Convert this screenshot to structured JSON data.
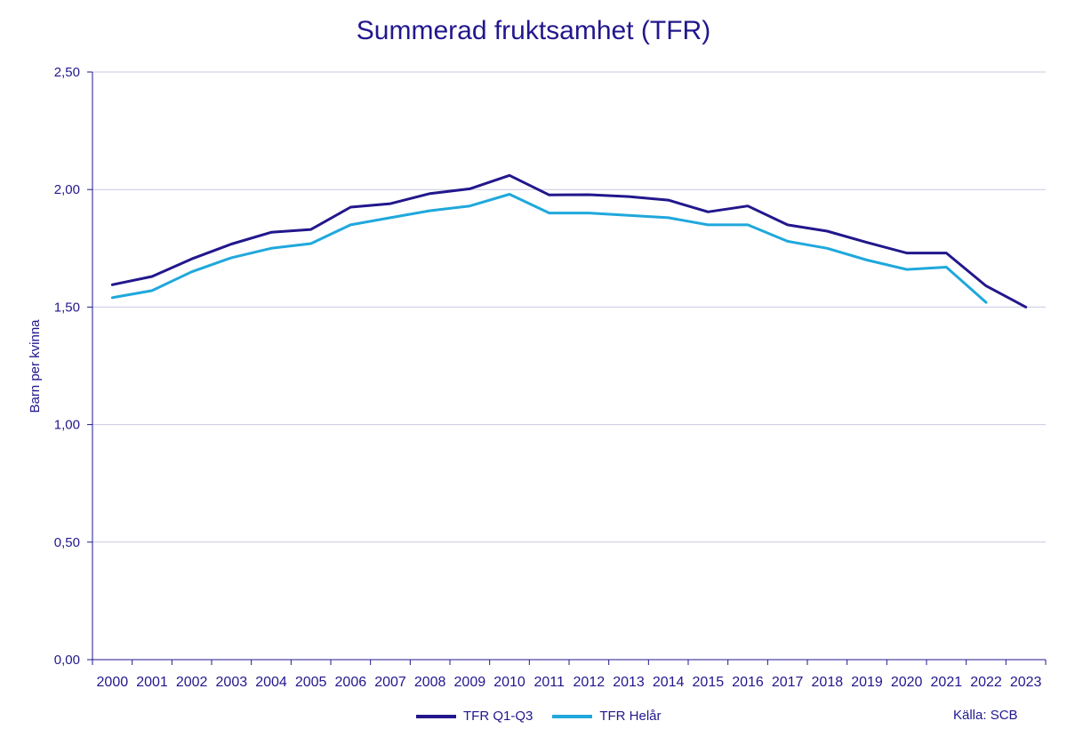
{
  "chart_data": {
    "type": "line",
    "title": "Summerad fruktsamhet (TFR)",
    "xlabel": "",
    "ylabel": "Barn per kvinna",
    "categories": [
      "2000",
      "2001",
      "2002",
      "2003",
      "2004",
      "2005",
      "2006",
      "2007",
      "2008",
      "2009",
      "2010",
      "2011",
      "2012",
      "2013",
      "2014",
      "2015",
      "2016",
      "2017",
      "2018",
      "2019",
      "2020",
      "2021",
      "2022",
      "2023"
    ],
    "ylim": [
      0,
      2.5
    ],
    "yticks": [
      "0,00",
      "0,50",
      "1,00",
      "1,50",
      "2,00",
      "2,50"
    ],
    "grid": "horizontal",
    "legend_position": "bottom",
    "series": [
      {
        "name": "TFR Q1-Q3",
        "color": "#22178c",
        "values": [
          1.595,
          1.63,
          1.705,
          1.768,
          1.818,
          1.83,
          1.925,
          1.94,
          1.983,
          2.003,
          2.06,
          1.977,
          1.978,
          1.97,
          1.955,
          1.905,
          1.93,
          1.85,
          1.823,
          1.775,
          1.73,
          1.73,
          1.59,
          1.5
        ]
      },
      {
        "name": "TFR Helår",
        "color": "#1fa8dc",
        "values": [
          1.54,
          1.57,
          1.65,
          1.71,
          1.75,
          1.77,
          1.85,
          1.88,
          1.91,
          1.93,
          1.98,
          1.9,
          1.9,
          1.89,
          1.88,
          1.85,
          1.85,
          1.78,
          1.75,
          1.7,
          1.66,
          1.67,
          1.52,
          null
        ]
      }
    ],
    "source": "Källa: SCB"
  }
}
